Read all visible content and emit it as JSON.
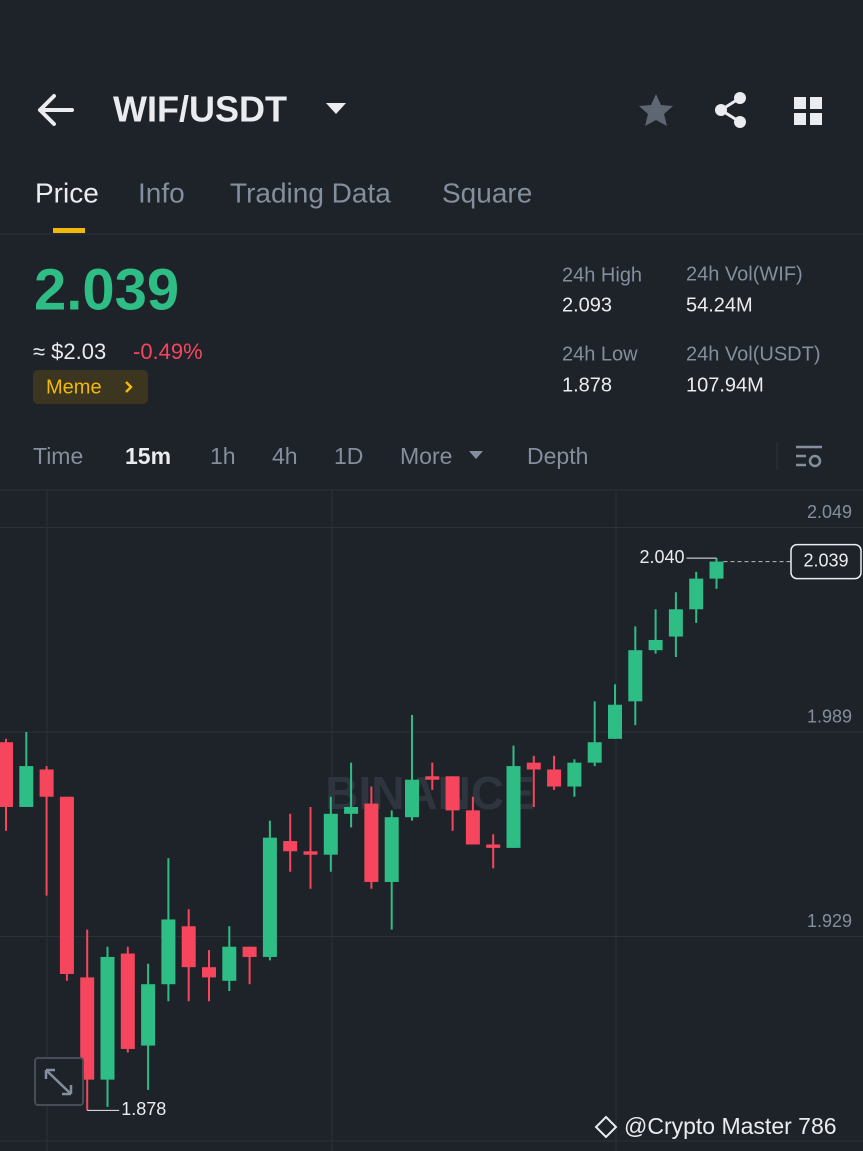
{
  "header": {
    "pair": "WIF/USDT"
  },
  "tabs": [
    "Price",
    "Info",
    "Trading Data",
    "Square"
  ],
  "ticker": {
    "price": "2.039",
    "usd_price": "≈ $2.03",
    "change": "-0.49%",
    "tag": "Meme",
    "stats": [
      {
        "label": "24h High",
        "value": "2.093"
      },
      {
        "label": "24h Vol(WIF)",
        "value": "54.24M"
      },
      {
        "label": "24h Low",
        "value": "1.878"
      },
      {
        "label": "24h Vol(USDT)",
        "value": "107.94M"
      }
    ]
  },
  "intervals": [
    "Time",
    "15m",
    "1h",
    "4h",
    "1D",
    "More",
    "Depth"
  ],
  "watermark": "@Crypto Master 786",
  "chart_data": {
    "type": "candlestick",
    "watermark": "BINANCE",
    "up_color": "#2ebd85",
    "down_color": "#f6465d",
    "ylim": [
      1.869,
      2.06
    ],
    "yticks": [
      2.049,
      1.989,
      1.929
    ],
    "grid": true,
    "open": [
      1.986,
      1.967,
      1.978,
      1.97,
      1.917,
      1.887,
      1.924,
      1.897,
      1.915,
      1.932,
      1.92,
      1.916,
      1.926,
      1.923,
      1.957,
      1.954,
      1.953,
      1.965,
      1.968,
      1.945,
      1.964,
      1.976,
      1.976,
      1.966,
      1.956,
      1.955,
      1.98,
      1.978,
      1.973,
      1.98,
      1.987,
      1.998,
      2.013,
      2.017,
      2.025,
      2.034
    ],
    "high": [
      1.987,
      1.989,
      1.979,
      1.97,
      1.931,
      1.926,
      1.926,
      1.921,
      1.952,
      1.937,
      1.925,
      1.932,
      1.926,
      1.963,
      1.965,
      1.967,
      1.97,
      1.98,
      1.973,
      1.966,
      1.994,
      1.98,
      1.976,
      1.97,
      1.959,
      1.985,
      1.982,
      1.982,
      1.981,
      1.998,
      2.003,
      2.02,
      2.025,
      2.03,
      2.036,
      2.04
    ],
    "low": [
      1.96,
      1.967,
      1.941,
      1.916,
      1.878,
      1.879,
      1.895,
      1.884,
      1.91,
      1.91,
      1.91,
      1.913,
      1.915,
      1.922,
      1.948,
      1.943,
      1.948,
      1.961,
      1.943,
      1.931,
      1.963,
      1.972,
      1.96,
      1.956,
      1.949,
      1.955,
      1.967,
      1.972,
      1.97,
      1.979,
      1.987,
      1.991,
      2.012,
      2.011,
      2.021,
      2.031
    ],
    "close": [
      1.967,
      1.979,
      1.97,
      1.918,
      1.887,
      1.923,
      1.896,
      1.915,
      1.934,
      1.92,
      1.917,
      1.926,
      1.923,
      1.958,
      1.954,
      1.953,
      1.965,
      1.967,
      1.945,
      1.964,
      1.975,
      1.975,
      1.966,
      1.956,
      1.955,
      1.979,
      1.978,
      1.973,
      1.98,
      1.986,
      1.997,
      2.013,
      2.016,
      2.025,
      2.034,
      2.039
    ],
    "max_marker": {
      "value": 2.04,
      "label": "2.040"
    },
    "min_marker": {
      "value": 1.878,
      "label": "1.878"
    },
    "last_price": {
      "value": 2.039,
      "label": "2.039"
    }
  }
}
